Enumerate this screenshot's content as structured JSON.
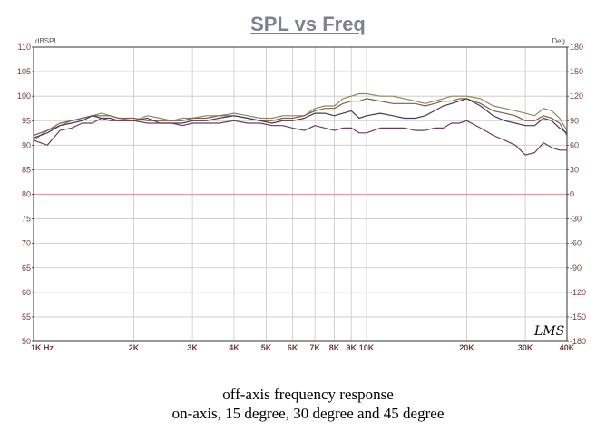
{
  "chart_data": {
    "type": "line",
    "title": "SPL vs Freq",
    "ylabel_left": "dBSPL",
    "ylabel_right": "Deg",
    "x_scale": "log",
    "xlim": [
      1000,
      40000
    ],
    "ylim": [
      50,
      110
    ],
    "ylim_right": [
      -180,
      180
    ],
    "grid": true,
    "x_ticks": [
      {
        "value": 1000,
        "label": "1K Hz"
      },
      {
        "value": 2000,
        "label": "2K"
      },
      {
        "value": 3000,
        "label": "3K"
      },
      {
        "value": 4000,
        "label": "4K"
      },
      {
        "value": 5000,
        "label": "5K"
      },
      {
        "value": 6000,
        "label": "6K"
      },
      {
        "value": 7000,
        "label": "7K"
      },
      {
        "value": 8000,
        "label": "8K"
      },
      {
        "value": 9000,
        "label": "9K"
      },
      {
        "value": 10000,
        "label": "10K"
      },
      {
        "value": 20000,
        "label": "20K"
      },
      {
        "value": 30000,
        "label": "30K"
      },
      {
        "value": 40000,
        "label": "40K"
      }
    ],
    "y_ticks_left": [
      50,
      55,
      60,
      65,
      70,
      75,
      80,
      85,
      90,
      95,
      100,
      105,
      110
    ],
    "y_ticks_right": [
      -180,
      -150,
      -120,
      -90,
      -60,
      -30,
      0,
      30,
      60,
      90,
      120,
      150,
      180
    ],
    "reference_line": 80,
    "series": [
      {
        "color": "#8a8a5c",
        "x": [
          1000,
          1100,
          1200,
          1300,
          1400,
          1500,
          1600,
          1700,
          1800,
          2000,
          2200,
          2400,
          2600,
          2800,
          3000,
          3300,
          3600,
          4000,
          4400,
          4800,
          5200,
          5600,
          6000,
          6500,
          7000,
          7500,
          8000,
          8500,
          9000,
          9500,
          10000,
          11000,
          12000,
          13000,
          14000,
          15000,
          16000,
          17000,
          18000,
          19000,
          20000,
          22000,
          24000,
          26000,
          28000,
          30000,
          32000,
          34000,
          36000,
          38000,
          40000
        ],
        "values": [
          91,
          93,
          94,
          95,
          95.5,
          96,
          96.5,
          96,
          95.5,
          95,
          96,
          95.5,
          95,
          95.5,
          95.5,
          96,
          96,
          96.5,
          96,
          95.5,
          95.5,
          96,
          96,
          96,
          97.5,
          98,
          98,
          99.5,
          100,
          100.5,
          100.5,
          100,
          100,
          99.5,
          99,
          98.5,
          99,
          99.5,
          100,
          100,
          100,
          99.5,
          98,
          97.5,
          97,
          96.5,
          96,
          97.5,
          97,
          95.5,
          93
        ]
      },
      {
        "color": "#8b5a4a",
        "x": [
          1000,
          1100,
          1200,
          1300,
          1400,
          1500,
          1600,
          1700,
          1800,
          2000,
          2200,
          2400,
          2600,
          2800,
          3000,
          3300,
          3600,
          4000,
          4400,
          4800,
          5200,
          5600,
          6000,
          6500,
          7000,
          7500,
          8000,
          8500,
          9000,
          9500,
          10000,
          11000,
          12000,
          13000,
          14000,
          15000,
          16000,
          17000,
          18000,
          19000,
          20000,
          22000,
          24000,
          26000,
          28000,
          30000,
          32000,
          34000,
          36000,
          38000,
          40000
        ],
        "values": [
          92,
          93,
          94.5,
          95,
          95.5,
          96,
          96,
          96,
          95.5,
          95.5,
          95,
          95,
          95,
          95,
          95.5,
          95.5,
          96,
          96,
          95.5,
          95,
          95,
          95.5,
          95.5,
          96,
          97,
          97.5,
          97.5,
          98.5,
          99,
          99,
          99.5,
          99,
          98.5,
          98.5,
          98.5,
          98,
          98.5,
          99,
          99,
          99.5,
          99.5,
          98.5,
          97,
          96.5,
          96,
          95,
          95,
          96,
          95.5,
          94.5,
          92
        ]
      },
      {
        "color": "#3d3f5e",
        "x": [
          1000,
          1100,
          1200,
          1300,
          1400,
          1500,
          1600,
          1700,
          1800,
          2000,
          2200,
          2400,
          2600,
          2800,
          3000,
          3300,
          3600,
          4000,
          4400,
          4800,
          5200,
          5600,
          6000,
          6500,
          7000,
          7500,
          8000,
          8500,
          9000,
          9500,
          10000,
          11000,
          12000,
          13000,
          14000,
          15000,
          16000,
          17000,
          18000,
          19000,
          20000,
          22000,
          24000,
          26000,
          28000,
          30000,
          32000,
          34000,
          36000,
          38000,
          40000
        ],
        "values": [
          91.5,
          92.5,
          94,
          94.5,
          95,
          96,
          95.5,
          95.5,
          95,
          95,
          95.5,
          94.5,
          94.5,
          94.5,
          95,
          95,
          95.5,
          96,
          95.5,
          95,
          94.5,
          95,
          95,
          95.5,
          96.5,
          96.5,
          96,
          96.5,
          97,
          95.5,
          96,
          96.5,
          96,
          95.5,
          95.5,
          96,
          97,
          98,
          98.5,
          99,
          99.5,
          98,
          96,
          95,
          94.5,
          94,
          94,
          95.5,
          95,
          93.5,
          92.5
        ]
      },
      {
        "color": "#6e3e58",
        "x": [
          1000,
          1100,
          1200,
          1300,
          1400,
          1500,
          1600,
          1700,
          1800,
          2000,
          2200,
          2400,
          2600,
          2800,
          3000,
          3300,
          3600,
          4000,
          4400,
          4800,
          5200,
          5600,
          6000,
          6500,
          7000,
          7500,
          8000,
          8500,
          9000,
          9500,
          10000,
          11000,
          12000,
          13000,
          14000,
          15000,
          16000,
          17000,
          18000,
          19000,
          20000,
          22000,
          24000,
          26000,
          28000,
          30000,
          32000,
          34000,
          36000,
          38000,
          40000
        ],
        "values": [
          91,
          90,
          93,
          93.5,
          94.5,
          94.5,
          95.5,
          95,
          95,
          95,
          94.5,
          94.5,
          94.5,
          94,
          94.5,
          94.5,
          94.5,
          95,
          94.5,
          94.5,
          94,
          94,
          93.5,
          93,
          94,
          93.5,
          93,
          93.5,
          93.5,
          92.5,
          92.5,
          93.5,
          93.5,
          93.5,
          93,
          93,
          93.5,
          93.5,
          94.5,
          94.5,
          95,
          93.5,
          92,
          91,
          90,
          88,
          88.5,
          90.5,
          89.5,
          89,
          89
        ]
      }
    ]
  },
  "signature": "LMS",
  "caption": {
    "line1": "off-axis frequency response",
    "line2": "on-axis, 15 degree, 30 degree and 45 degree"
  }
}
